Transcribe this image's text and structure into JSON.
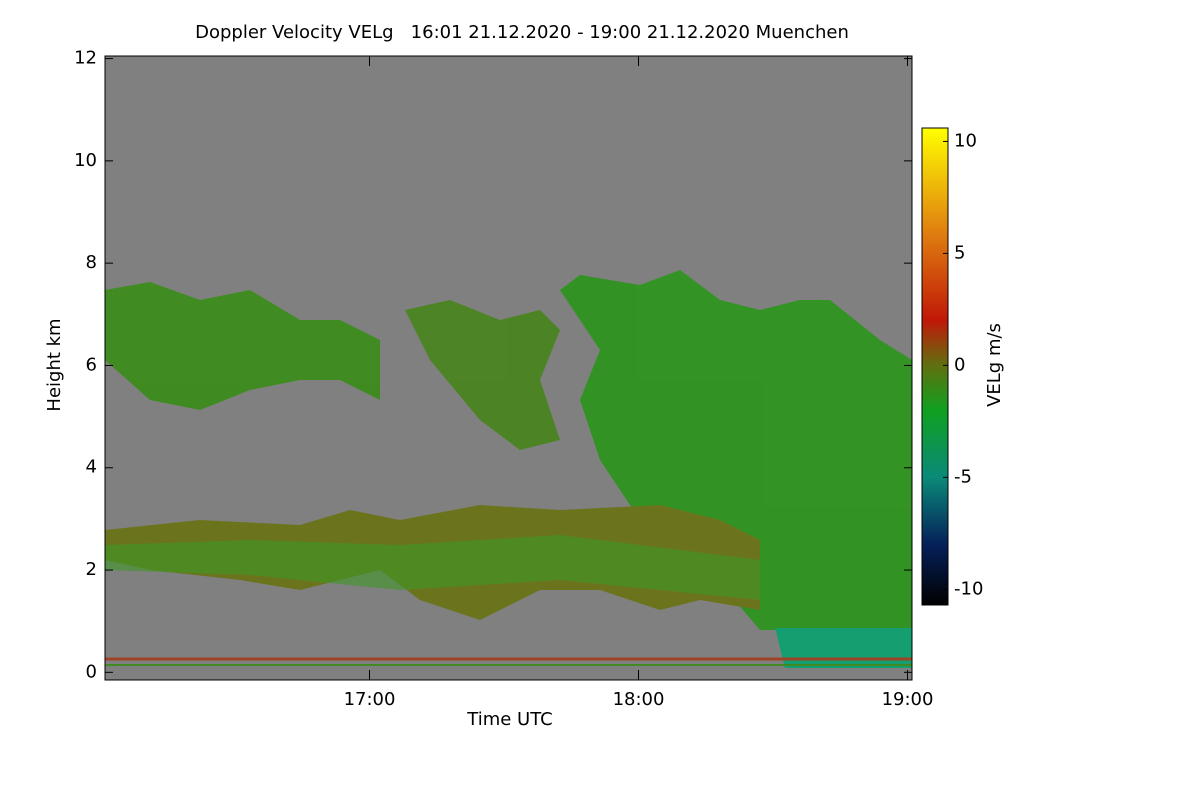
{
  "chart_data": {
    "type": "heatmap",
    "title": "Doppler Velocity VELg   16:01 21.12.2020 - 19:00 21.12.2020 Muenchen",
    "x_label": "Time UTC",
    "y_label": "Height km",
    "xlim": [
      961,
      1141
    ],
    "xticks": [
      {
        "value": 1020,
        "label": "17:00"
      },
      {
        "value": 1080,
        "label": "18:00"
      },
      {
        "value": 1140,
        "label": "19:00"
      }
    ],
    "ylim": [
      -0.15,
      12.05
    ],
    "yticks": [
      0,
      2,
      4,
      6,
      8,
      10,
      12
    ],
    "colorbar": {
      "label": "VELg m/s",
      "lim": [
        -10.7,
        10.6
      ],
      "ticks": [
        -10,
        -5,
        0,
        5,
        10
      ],
      "colormap": [
        {
          "value": -10.7,
          "color": "#000000"
        },
        {
          "value": -8,
          "color": "#06205a"
        },
        {
          "value": -5,
          "color": "#0a8a78"
        },
        {
          "value": -2,
          "color": "#10a020"
        },
        {
          "value": 0,
          "color": "#607010"
        },
        {
          "value": 2,
          "color": "#c01808"
        },
        {
          "value": 6,
          "color": "#e08010"
        },
        {
          "value": 10.6,
          "color": "#ffff00"
        }
      ]
    },
    "background": "#808080"
  }
}
